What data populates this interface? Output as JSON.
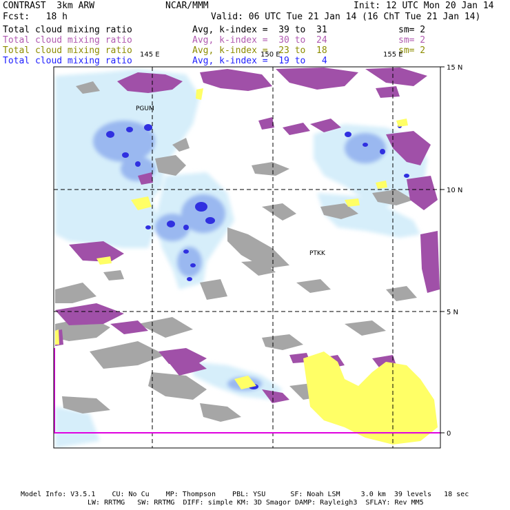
{
  "header": {
    "model": "CONTRAST  3km ARW",
    "org": "NCAR/MMM",
    "init": "Init: 12 UTC Mon 20 Jan 14",
    "fcst": "Fcst:   18 h",
    "valid": "Valid: 06 UTC Tue 21 Jan 14 (16 ChT Tue 21 Jan 14)"
  },
  "fields": [
    {
      "name": "Total cloud mixing ratio",
      "avg": "Avg, k-index =  39 to  31",
      "sm": "sm= 2",
      "color": "#000000"
    },
    {
      "name": "Total cloud mixing ratio",
      "avg": "Avg, k-index =  30 to  24",
      "sm": "sm= 2",
      "color": "#b05ab0"
    },
    {
      "name": "Total cloud mixing ratio",
      "avg": "Avg, k-index =  23 to  18",
      "sm": "sm= 2",
      "color": "#8c8c00"
    },
    {
      "name": "Total cloud mixing ratio",
      "avg": "Avg, k-index =  19 to   4",
      "sm": "sm= 2",
      "color": "#2020ff"
    }
  ],
  "map": {
    "lon_labels": [
      "145 E",
      "150 E",
      "155 E"
    ],
    "lat_labels": [
      "15 N",
      "10 N",
      "5 N",
      "0"
    ],
    "stations": [
      "PGUM",
      "PTKK"
    ],
    "colors": {
      "gray": "#a6a6a6",
      "purple": "#a050a8",
      "yellow": "#ffff66",
      "lightblue": "#d6eefa",
      "midblue": "#9ab8f0",
      "blue": "#3030e0",
      "boundary": "#e000e0"
    }
  },
  "footer": {
    "line1": "Model Info: V3.5.1    CU: No Cu    MP: Thompson    PBL: YSU      SF: Noah LSM     3.0 km  39 levels   18 sec",
    "line2": "LW: RRTMG   SW: RRTMG  DIFF: simple KM: 3D Smagor DAMP: Rayleigh3  SFLAY: Rev MM5"
  }
}
